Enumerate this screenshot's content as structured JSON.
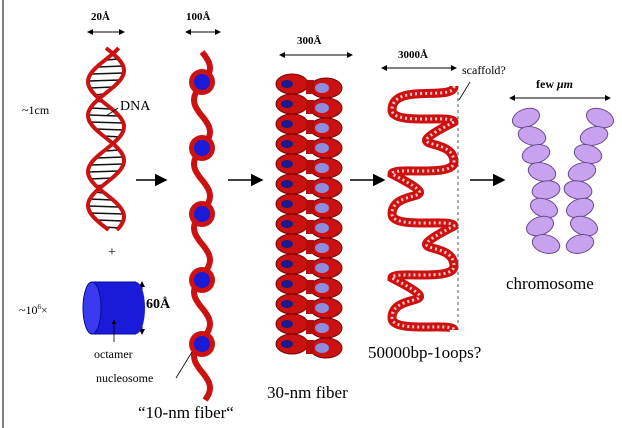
{
  "labels": {
    "dna_width": "20Å",
    "fiber10_width": "100Å",
    "fiber30_width": "300Å",
    "loops_width": "3000Å",
    "scaffold": "scaffold?",
    "chromosome_width_prefix": "few",
    "chromosome_width_unit": "μm",
    "dna_length": "~1cm",
    "dna": "DNA",
    "plus": "+",
    "octamer_count_prefix": "~10",
    "octamer_count_exp": "6",
    "octamer_count_suffix": "×",
    "octamer_height": "60Å",
    "octamer": "octamer",
    "nucleosome": "nucleosome",
    "fiber10": "“10-nm fiber“",
    "fiber30": "30-nm fiber",
    "loops": "50000bp-1oops?",
    "chromosome": "chromosome"
  },
  "colors": {
    "dna_red": "#cc1111",
    "nucleosome_blue": "#1a1ad9",
    "chromosome_purple": "#c9a2ef",
    "arrow": "#000000"
  }
}
